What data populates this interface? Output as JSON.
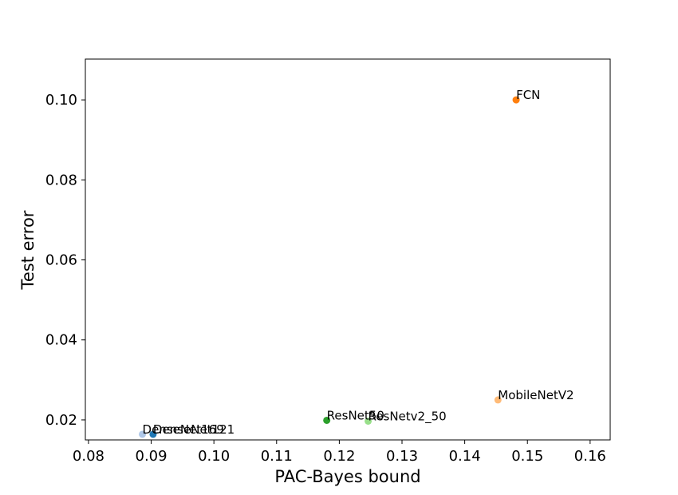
{
  "chart_data": {
    "type": "scatter",
    "title": "",
    "xlabel": "PAC-Bayes bound",
    "ylabel": "Test error",
    "xlim": [
      0.0795,
      0.1632
    ],
    "ylim": [
      0.015,
      0.1102
    ],
    "xticks": [
      "0.08",
      "0.09",
      "0.10",
      "0.11",
      "0.12",
      "0.13",
      "0.14",
      "0.15",
      "0.16"
    ],
    "xtick_values": [
      0.08,
      0.09,
      0.1,
      0.11,
      0.12,
      0.13,
      0.14,
      0.15,
      0.16
    ],
    "yticks": [
      "0.02",
      "0.04",
      "0.06",
      "0.08",
      "0.10"
    ],
    "ytick_values": [
      0.02,
      0.04,
      0.06,
      0.08,
      0.1
    ],
    "grid": false,
    "legend": "none",
    "points": [
      {
        "label": "FCN",
        "x": 0.1482,
        "y": 0.1,
        "color": "#ff7f0e"
      },
      {
        "label": "MobileNetV2",
        "x": 0.1453,
        "y": 0.025,
        "color": "#ffbb78"
      },
      {
        "label": "ResNet50",
        "x": 0.118,
        "y": 0.0199,
        "color": "#2ca02c"
      },
      {
        "label": "ResNetv2_50",
        "x": 0.1246,
        "y": 0.0197,
        "color": "#98df8a"
      },
      {
        "label": "DenseNet169",
        "x": 0.0886,
        "y": 0.0164,
        "color": "#aec7e8"
      },
      {
        "label": "DenseNet121",
        "x": 0.0903,
        "y": 0.0164,
        "color": "#1f77b4"
      }
    ]
  }
}
